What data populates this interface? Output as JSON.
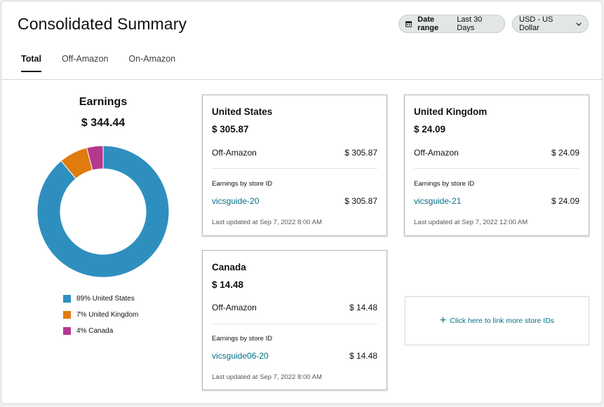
{
  "header": {
    "title": "Consolidated Summary",
    "date_range_label": "Date range",
    "date_range_value": "Last 30 Days",
    "currency": "USD - US Dollar"
  },
  "tabs": [
    {
      "label": "Total",
      "active": true
    },
    {
      "label": "Off-Amazon",
      "active": false
    },
    {
      "label": "On-Amazon",
      "active": false
    }
  ],
  "earnings": {
    "label": "Earnings",
    "total": "$ 344.44",
    "chart_data": {
      "type": "pie",
      "categories": [
        "United States",
        "United Kingdom",
        "Canada"
      ],
      "values": [
        89,
        7,
        4
      ],
      "colors": [
        "#2e8fbf",
        "#e07b0e",
        "#b3388f"
      ],
      "legend_position": "bottom"
    },
    "legend": [
      {
        "label": "89% United States",
        "color": "#2e8fbf"
      },
      {
        "label": "7% United Kingdom",
        "color": "#e07b0e"
      },
      {
        "label": "4% Canada",
        "color": "#b3388f"
      }
    ]
  },
  "cards": {
    "us": {
      "title": "United States",
      "total": "$ 305.87",
      "off_label": "Off-Amazon",
      "off_value": "$ 305.87",
      "store_header": "Earnings by store ID",
      "store_id": "vicsguide-20",
      "store_value": "$ 305.87",
      "updated": "Last updated at Sep 7, 2022 8:00 AM"
    },
    "uk": {
      "title": "United Kingdom",
      "total": "$ 24.09",
      "off_label": "Off-Amazon",
      "off_value": "$ 24.09",
      "store_header": "Earnings by store ID",
      "store_id": "vicsguide-21",
      "store_value": "$ 24.09",
      "updated": "Last updated at Sep 7, 2022 12:00 AM"
    },
    "ca": {
      "title": "Canada",
      "total": "$ 14.48",
      "off_label": "Off-Amazon",
      "off_value": "$ 14.48",
      "store_header": "Earnings by store ID",
      "store_id": "vicsguide06-20",
      "store_value": "$ 14.48",
      "updated": "Last updated at Sep 7, 2022 8:00 AM"
    }
  },
  "link_more": "Click here to link more store IDs",
  "colors": {
    "link": "#007185",
    "pill_bg": "#e3e6e6"
  }
}
